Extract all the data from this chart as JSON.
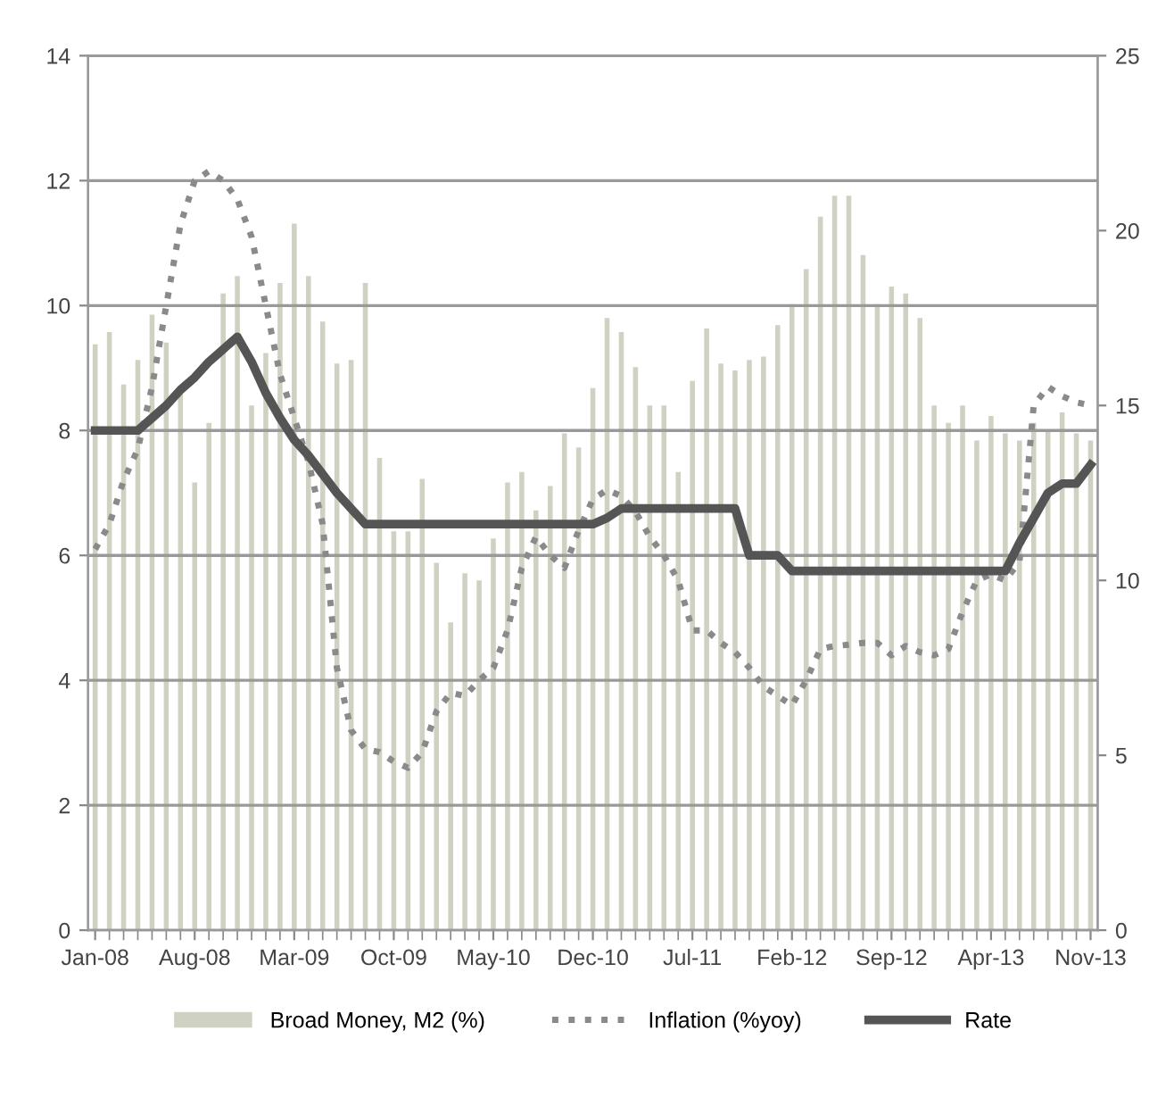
{
  "chart_data": {
    "type": "bar",
    "categories": [
      "Jan-08",
      null,
      null,
      null,
      null,
      null,
      null,
      "Aug-08",
      null,
      null,
      null,
      null,
      null,
      null,
      "Mar-09",
      null,
      null,
      null,
      null,
      null,
      null,
      "Oct-09",
      null,
      null,
      null,
      null,
      null,
      null,
      "May-10",
      null,
      null,
      null,
      null,
      null,
      null,
      "Dec-10",
      null,
      null,
      null,
      null,
      null,
      null,
      "Jul-11",
      null,
      null,
      null,
      null,
      null,
      null,
      "Feb-12",
      null,
      null,
      null,
      null,
      null,
      null,
      "Sep-12",
      null,
      null,
      null,
      null,
      null,
      null,
      "Apr-13",
      null,
      null,
      null,
      null,
      null,
      null,
      "Nov-13"
    ],
    "series": [
      {
        "name": "Broad Money, M2 (%)",
        "axis": "y2",
        "color": "#cfd2c2",
        "values": [
          16.75,
          17.1,
          15.6,
          16.3,
          17.6,
          16.8,
          15.5,
          12.8,
          14.5,
          18.2,
          18.7,
          15.0,
          16.5,
          18.5,
          20.2,
          18.7,
          17.4,
          16.2,
          16.3,
          18.5,
          13.5,
          11.4,
          11.4,
          12.9,
          10.5,
          8.8,
          10.2,
          10.0,
          11.2,
          12.8,
          13.1,
          12.0,
          12.7,
          14.2,
          13.8,
          15.5,
          17.5,
          17.1,
          16.1,
          15.0,
          15.0,
          13.1,
          15.7,
          17.2,
          16.2,
          16.0,
          16.3,
          16.4,
          17.3,
          17.9,
          18.9,
          20.4,
          21.0,
          21.0,
          19.3,
          17.9,
          18.4,
          18.2,
          17.5,
          15.0,
          14.5,
          15.0,
          14.0,
          14.7,
          14.2,
          14.0,
          14.5,
          14.3,
          14.8,
          14.2,
          14.0
        ]
      },
      {
        "name": "Inflation (%yoy)",
        "type": "line",
        "axis": "y",
        "color": "#8a8a8a",
        "line_style": "dotted",
        "values": [
          6.1,
          6.5,
          7.2,
          7.7,
          8.7,
          10.0,
          11.3,
          12.0,
          12.15,
          12.0,
          11.7,
          11.1,
          10.0,
          8.9,
          8.2,
          7.5,
          6.5,
          4.2,
          3.2,
          2.9,
          2.85,
          2.7,
          2.6,
          2.85,
          3.5,
          3.8,
          3.75,
          4.0,
          4.2,
          4.8,
          5.8,
          6.3,
          6.0,
          5.8,
          6.4,
          6.9,
          7.05,
          6.95,
          6.7,
          6.3,
          6.0,
          5.6,
          4.8,
          4.8,
          4.6,
          4.45,
          4.2,
          3.9,
          3.75,
          3.6,
          4.0,
          4.5,
          4.55,
          4.57,
          4.6,
          4.6,
          4.4,
          4.55,
          4.45,
          4.4,
          4.5,
          5.1,
          5.6,
          5.7,
          5.6,
          5.9,
          8.4,
          8.7,
          8.55,
          8.45,
          8.4
        ]
      },
      {
        "name": "Rate",
        "type": "line",
        "axis": "y",
        "color": "#555555",
        "line_style": "solid",
        "values": [
          8.0,
          8.0,
          8.0,
          8.0,
          8.2,
          8.4,
          8.65,
          8.85,
          9.1,
          9.3,
          9.5,
          9.1,
          8.6,
          8.2,
          7.85,
          7.6,
          7.3,
          7.0,
          6.75,
          6.5,
          6.5,
          6.5,
          6.5,
          6.5,
          6.5,
          6.5,
          6.5,
          6.5,
          6.5,
          6.5,
          6.5,
          6.5,
          6.5,
          6.5,
          6.5,
          6.5,
          6.6,
          6.75,
          6.75,
          6.75,
          6.75,
          6.75,
          6.75,
          6.75,
          6.75,
          6.75,
          6.0,
          6.0,
          6.0,
          5.75,
          5.75,
          5.75,
          5.75,
          5.75,
          5.75,
          5.75,
          5.75,
          5.75,
          5.75,
          5.75,
          5.75,
          5.75,
          5.75,
          5.75,
          5.75,
          6.2,
          6.6,
          7.0,
          7.15,
          7.15,
          7.45
        ]
      }
    ],
    "ylim": [
      0,
      14
    ],
    "yticks": [
      0,
      2,
      4,
      6,
      8,
      10,
      12,
      14
    ],
    "y2lim": [
      0,
      25
    ],
    "y2ticks": [
      0,
      5,
      10,
      15,
      20,
      25
    ],
    "grid": "y",
    "legend": "bottom",
    "marker": "none"
  }
}
